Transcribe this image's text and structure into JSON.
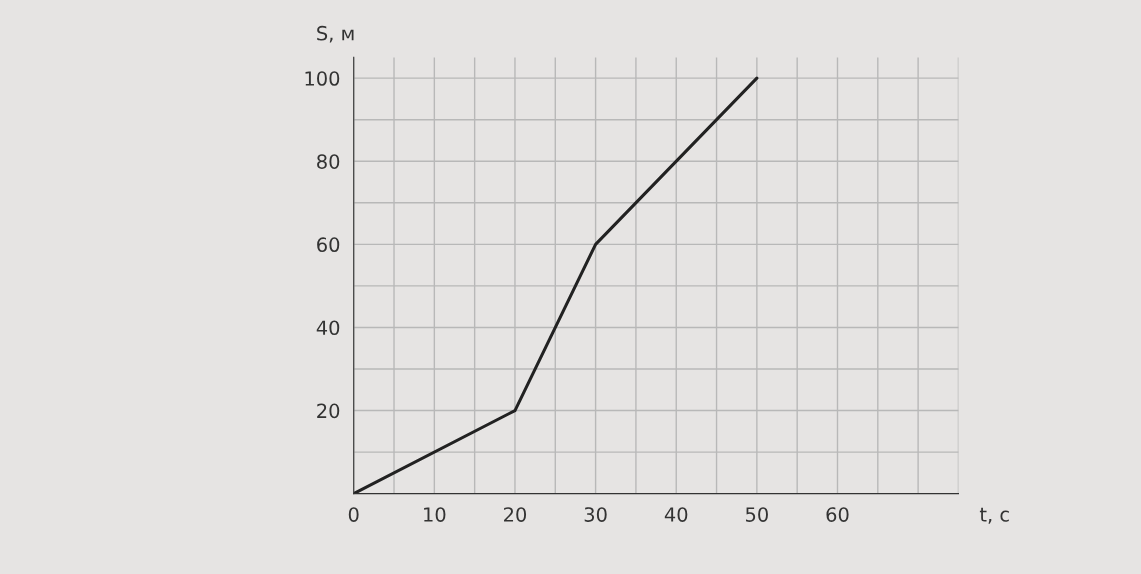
{
  "chart_data": {
    "type": "line",
    "xlabel": "t, с",
    "ylabel": "S, м",
    "x": [
      0,
      20,
      30,
      50
    ],
    "series": [
      {
        "color": "#222222",
        "values": [
          0,
          20,
          60,
          100
        ]
      }
    ],
    "xlim": [
      0,
      75
    ],
    "ylim": [
      0,
      105
    ],
    "xticks": [
      {
        "value": 0,
        "label": "0"
      },
      {
        "value": 5,
        "label": null
      },
      10,
      {
        "value": 15,
        "label": null
      },
      20,
      {
        "value": 25,
        "label": null
      },
      30,
      {
        "value": 35,
        "label": null
      },
      40,
      {
        "value": 45,
        "label": null
      },
      50,
      {
        "value": 55,
        "label": null
      },
      60,
      {
        "value": 65,
        "label": null
      },
      {
        "value": 70,
        "label": null
      },
      {
        "value": 75,
        "label": null
      }
    ],
    "yticks": [
      {
        "value": 10,
        "label": null
      },
      20,
      {
        "value": 30,
        "label": null
      },
      40,
      {
        "value": 50,
        "label": null
      },
      60,
      {
        "value": 70,
        "label": null
      },
      80,
      {
        "value": 90,
        "label": null
      },
      100
    ],
    "grid": true,
    "marker": "none",
    "line_style": "solid"
  }
}
